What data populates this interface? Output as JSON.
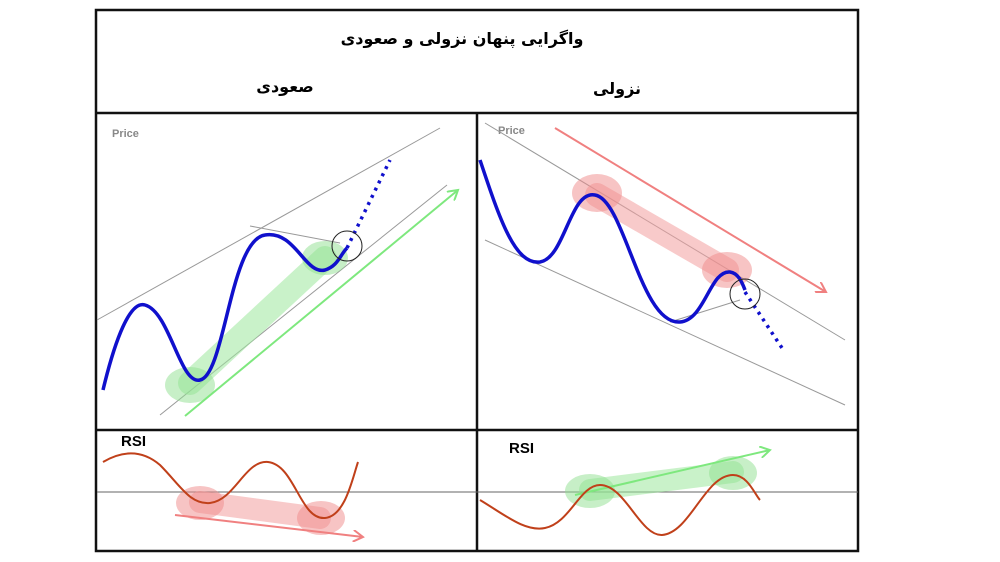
{
  "header": {
    "title": "واگرایی پنهان نزولی و صعودی",
    "bullish": "صعودی",
    "bearish": "نزولی"
  },
  "bullish_panel": {
    "price_label": "Price",
    "rsi_label": "RSI"
  },
  "bearish_panel": {
    "price_label": "Price",
    "rsi_label": "RSI"
  }
}
